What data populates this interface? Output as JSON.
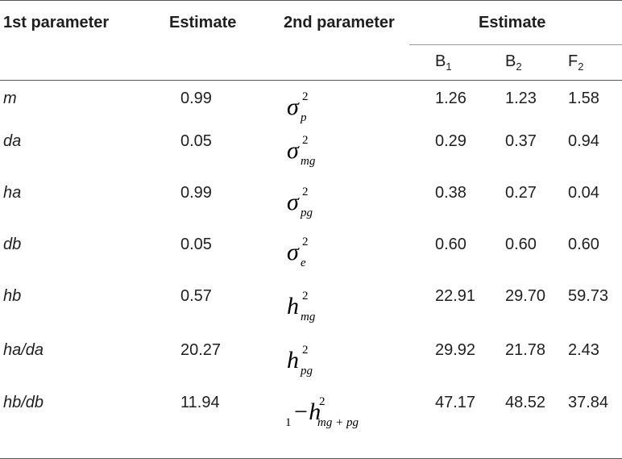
{
  "headers": {
    "col1": "1st parameter",
    "col2": "Estimate",
    "col3": "2nd parameter",
    "col4": "Estimate",
    "sub": [
      {
        "base": "B",
        "sub": "1"
      },
      {
        "base": "B",
        "sub": "2"
      },
      {
        "base": "F",
        "sub": "2"
      }
    ]
  },
  "rows": [
    {
      "param1": "m",
      "est1": "0.99",
      "sym": {
        "base": "σ",
        "sup": "2",
        "sub": "p",
        "pre": ""
      },
      "b1": "1.26",
      "b2": "1.23",
      "f2": "1.58"
    },
    {
      "param1": "da",
      "est1": "0.05",
      "sym": {
        "base": "σ",
        "sup": "2",
        "sub": "mg",
        "pre": ""
      },
      "b1": "0.29",
      "b2": "0.37",
      "f2": "0.94"
    },
    {
      "param1": "ha",
      "est1": "0.99",
      "sym": {
        "base": "σ",
        "sup": "2",
        "sub": "pg",
        "pre": ""
      },
      "b1": "0.38",
      "b2": "0.27",
      "f2": "0.04"
    },
    {
      "param1": "db",
      "est1": "0.05",
      "sym": {
        "base": "σ",
        "sup": "2",
        "sub": "e",
        "pre": ""
      },
      "b1": "0.60",
      "b2": "0.60",
      "f2": "0.60"
    },
    {
      "param1": "hb",
      "est1": "0.57",
      "sym": {
        "base": "h",
        "sup": "2",
        "sub": "mg",
        "pre": ""
      },
      "b1": "22.91",
      "b2": "29.70",
      "f2": "59.73"
    },
    {
      "param1": "ha/da",
      "est1": "20.27",
      "sym": {
        "base": "h",
        "sup": "2",
        "sub": "pg",
        "pre": ""
      },
      "b1": "29.92",
      "b2": "21.78",
      "f2": "2.43"
    },
    {
      "param1": "hb/db",
      "est1": "11.94",
      "sym": {
        "base": "−h",
        "sup": "2",
        "sub": "mg + pg",
        "pre": "1"
      },
      "b1": "47.17",
      "b2": "48.52",
      "f2": "37.84"
    }
  ]
}
